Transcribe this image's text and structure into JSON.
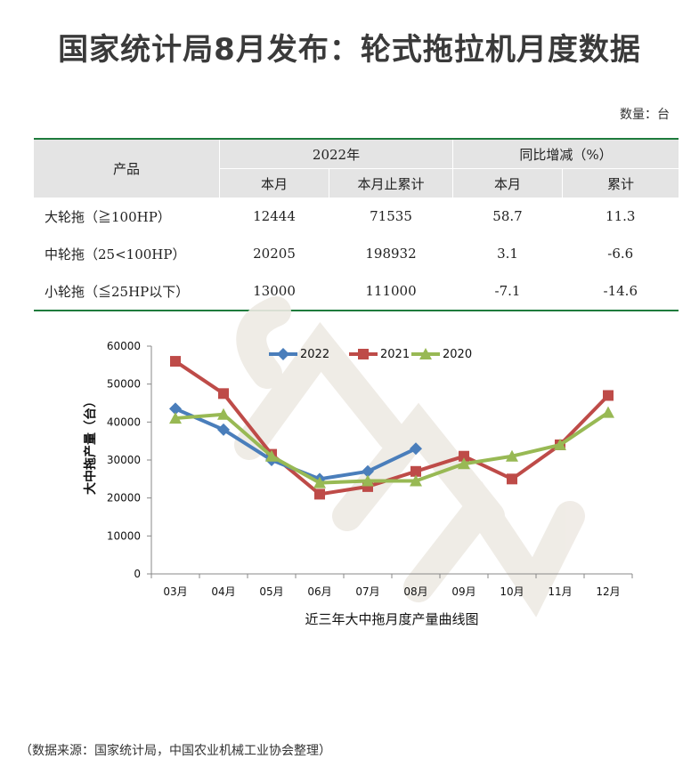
{
  "title": "国家统计局8月发布：轮式拖拉机月度数据",
  "unit_note": "数量：台",
  "table": {
    "col_product": "产品",
    "group_2022": "2022年",
    "group_yoy": "同比增减（%）",
    "sub_month": "本月",
    "sub_cumulative": "本月止累计",
    "sub_month2": "本月",
    "sub_total": "累计",
    "rows": [
      {
        "name": "大轮拖（≧100HP）",
        "month": "12444",
        "cum": "71535",
        "yoy_month": "58.7",
        "yoy_cum": "11.3"
      },
      {
        "name": "中轮拖（25<100HP）",
        "month": "20205",
        "cum": "198932",
        "yoy_month": "3.1",
        "yoy_cum": "-6.6"
      },
      {
        "name": "小轮拖（≦25HP以下）",
        "month": "13000",
        "cum": "111000",
        "yoy_month": "-7.1",
        "yoy_cum": "-14.6"
      }
    ]
  },
  "chart_data": {
    "type": "line",
    "title": "",
    "xlabel": "近三年大中拖月度产量曲线图",
    "ylabel": "大中拖产量（台）",
    "categories": [
      "03月",
      "04月",
      "05月",
      "06月",
      "07月",
      "08月",
      "09月",
      "10月",
      "11月",
      "12月"
    ],
    "ylim": [
      0,
      60000
    ],
    "yticks": [
      0,
      10000,
      20000,
      30000,
      40000,
      50000,
      60000
    ],
    "legend_position": "top",
    "series": [
      {
        "name": "2022",
        "color": "#4a7ebb",
        "marker": "diamond",
        "values": [
          43500,
          38000,
          30000,
          25000,
          27000,
          33000,
          null,
          null,
          null,
          null
        ]
      },
      {
        "name": "2021",
        "color": "#be4b48",
        "marker": "square",
        "values": [
          56000,
          47500,
          31500,
          21000,
          23000,
          27000,
          31000,
          25000,
          34000,
          47000
        ]
      },
      {
        "name": "2020",
        "color": "#98b954",
        "marker": "triangle",
        "values": [
          41000,
          42000,
          31000,
          24000,
          24500,
          24500,
          29000,
          31000,
          34000,
          42500
        ]
      }
    ]
  },
  "footer": "（数据来源：国家统计局，中国农业机械工业协会整理）"
}
